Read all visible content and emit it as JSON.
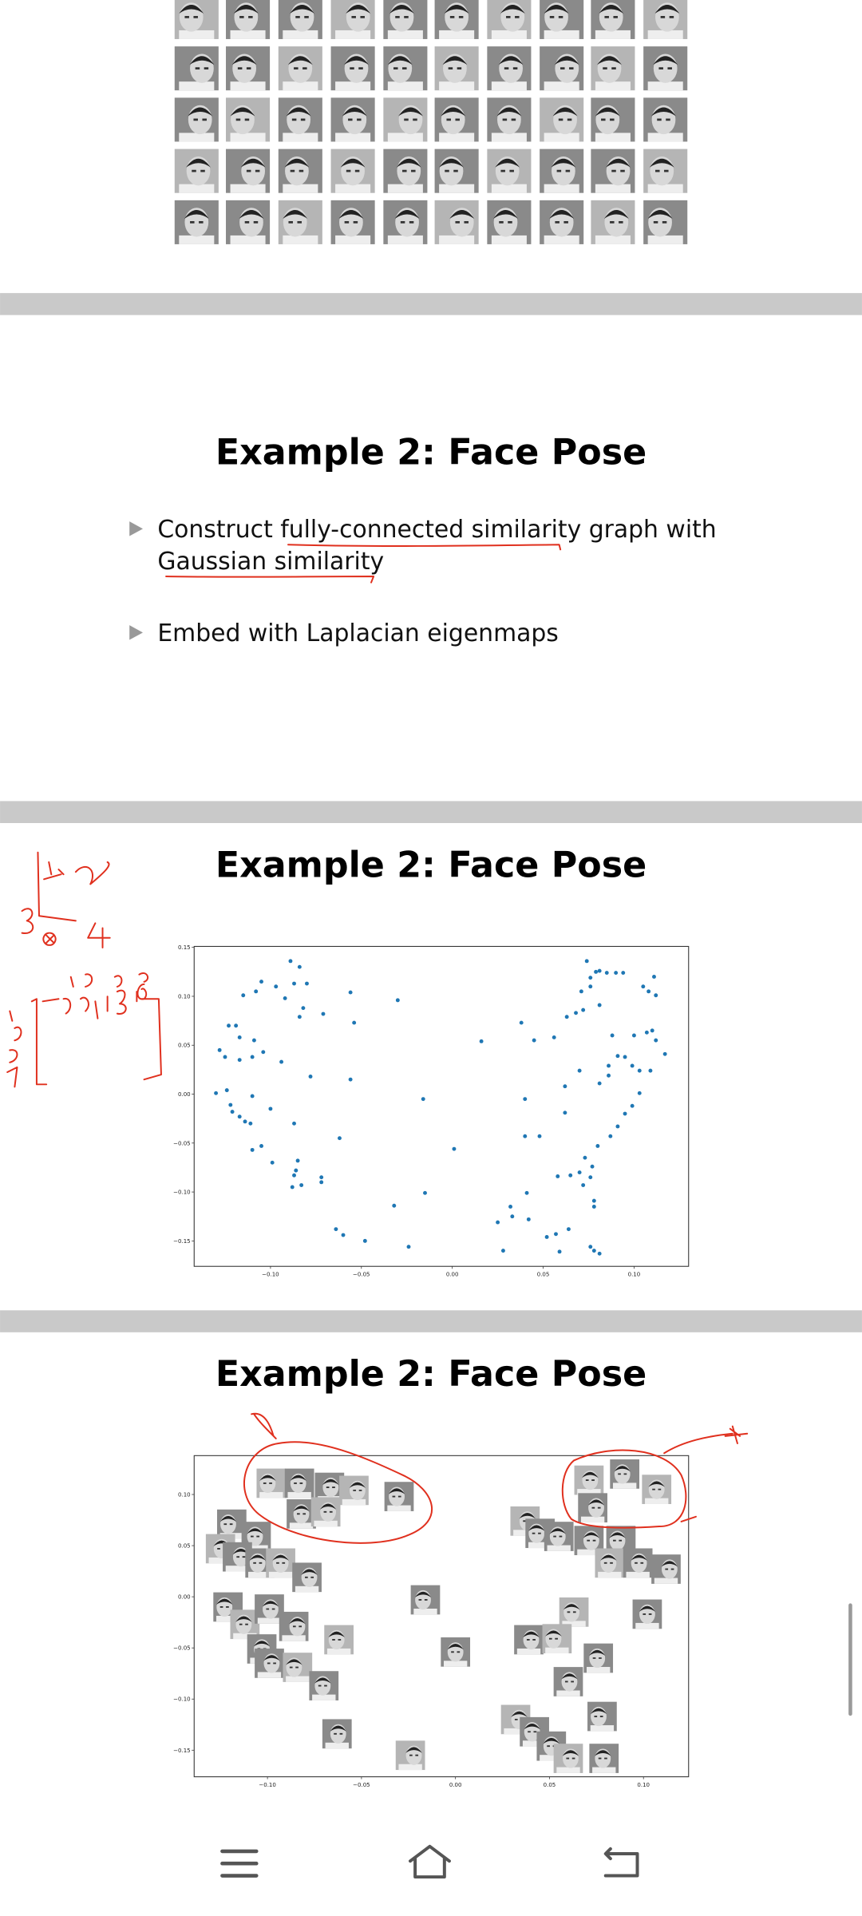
{
  "slides": [
    {
      "title": "Example 2: Face Pose",
      "bullets": [
        [
          "Construct fully-connected similarity graph with",
          "Gaussian similarity"
        ],
        [
          "Embed with Laplacian eigenmaps"
        ]
      ]
    },
    {
      "title": "Example 2: Face Pose"
    },
    {
      "title": "Example 2: Face Pose"
    }
  ],
  "chart_data": [
    {
      "type": "scatter",
      "color": "#1f77b4",
      "xlim": [
        -0.142,
        0.13
      ],
      "ylim": [
        -0.176,
        0.151
      ],
      "xticks": [
        {
          "value": -0.1,
          "label": "−0.10"
        },
        {
          "value": -0.05,
          "label": "−0.05"
        },
        {
          "value": 0,
          "label": "0.00"
        },
        {
          "value": 0.05,
          "label": "0.05"
        },
        {
          "value": 0.1,
          "label": "0.10"
        }
      ],
      "yticks": [
        {
          "value": -0.15,
          "label": "−0.15"
        },
        {
          "value": -0.1,
          "label": "−0.10"
        },
        {
          "value": -0.05,
          "label": "−0.05"
        },
        {
          "value": 0,
          "label": "0.00"
        },
        {
          "value": 0.05,
          "label": "0.05"
        },
        {
          "value": 0.1,
          "label": "0.10"
        },
        {
          "value": 0.15,
          "label": "0.15"
        }
      ],
      "x": [
        -0.089,
        -0.084,
        -0.105,
        -0.097,
        -0.08,
        -0.087,
        -0.115,
        -0.092,
        -0.108,
        -0.082,
        -0.071,
        -0.056,
        -0.084,
        -0.054,
        -0.123,
        -0.119,
        -0.117,
        -0.128,
        -0.109,
        -0.104,
        -0.11,
        -0.125,
        -0.094,
        -0.117,
        -0.078,
        -0.056,
        -0.13,
        -0.124,
        -0.11,
        -0.122,
        -0.121,
        -0.117,
        -0.114,
        -0.111,
        -0.1,
        -0.087,
        -0.062,
        -0.11,
        -0.105,
        -0.099,
        -0.085,
        -0.086,
        -0.087,
        -0.072,
        -0.072,
        -0.083,
        -0.088,
        -0.064,
        -0.06,
        -0.048,
        -0.024,
        -0.032,
        -0.015,
        -0.016,
        -0.03,
        0.001,
        0.016,
        0.074,
        0.079,
        0.076,
        0.081,
        0.085,
        0.09,
        0.094,
        0.076,
        0.071,
        0.081,
        0.072,
        0.068,
        0.063,
        0.105,
        0.111,
        0.108,
        0.112,
        0.038,
        0.045,
        0.056,
        0.088,
        0.1,
        0.107,
        0.112,
        0.11,
        0.117,
        0.091,
        0.095,
        0.099,
        0.103,
        0.109,
        0.086,
        0.086,
        0.07,
        0.081,
        0.062,
        0.04,
        0.103,
        0.099,
        0.095,
        0.091,
        0.062,
        0.087,
        0.08,
        0.04,
        0.048,
        0.058,
        0.065,
        0.07,
        0.073,
        0.077,
        0.076,
        0.072,
        0.041,
        0.032,
        0.042,
        0.033,
        0.025,
        0.052,
        0.057,
        0.064,
        0.059,
        0.028,
        0.076,
        0.078,
        0.081,
        0.078,
        0.078
      ],
      "values": [
        0.136,
        0.13,
        0.115,
        0.11,
        0.113,
        0.113,
        0.101,
        0.098,
        0.105,
        0.088,
        0.082,
        0.104,
        0.079,
        0.073,
        0.07,
        0.07,
        0.058,
        0.045,
        0.055,
        0.043,
        0.038,
        0.038,
        0.033,
        0.035,
        0.018,
        0.015,
        0.001,
        0.004,
        -0.002,
        -0.011,
        -0.018,
        -0.023,
        -0.028,
        -0.03,
        -0.015,
        -0.03,
        -0.045,
        -0.057,
        -0.053,
        -0.07,
        -0.068,
        -0.078,
        -0.083,
        -0.085,
        -0.09,
        -0.093,
        -0.095,
        -0.138,
        -0.144,
        -0.15,
        -0.156,
        -0.114,
        -0.101,
        -0.005,
        0.096,
        -0.056,
        0.054,
        0.136,
        0.125,
        0.119,
        0.126,
        0.124,
        0.124,
        0.124,
        0.11,
        0.105,
        0.091,
        0.086,
        0.083,
        0.079,
        0.11,
        0.12,
        0.105,
        0.101,
        0.073,
        0.055,
        0.058,
        0.06,
        0.06,
        0.063,
        0.055,
        0.065,
        0.041,
        0.039,
        0.038,
        0.029,
        0.024,
        0.024,
        0.029,
        0.019,
        0.024,
        0.011,
        0.008,
        -0.005,
        0.001,
        -0.012,
        -0.02,
        -0.033,
        -0.019,
        -0.043,
        -0.053,
        -0.043,
        -0.043,
        -0.084,
        -0.083,
        -0.08,
        -0.065,
        -0.074,
        -0.085,
        -0.093,
        -0.101,
        -0.115,
        -0.128,
        -0.125,
        -0.131,
        -0.146,
        -0.143,
        -0.138,
        -0.161,
        -0.16,
        -0.156,
        -0.16,
        -0.163,
        -0.109,
        -0.115
      ]
    },
    {
      "type": "scatter",
      "marker": "face",
      "xlim": [
        -0.139,
        0.124
      ],
      "ylim": [
        -0.176,
        0.138
      ],
      "xticks": [
        {
          "value": -0.1,
          "label": "−0.10"
        },
        {
          "value": -0.05,
          "label": "−0.05"
        },
        {
          "value": 0,
          "label": "0.00"
        },
        {
          "value": 0.05,
          "label": "0.05"
        },
        {
          "value": 0.1,
          "label": "0.10"
        }
      ],
      "yticks": [
        {
          "value": -0.15,
          "label": "−0.15"
        },
        {
          "value": -0.1,
          "label": "−0.10"
        },
        {
          "value": -0.05,
          "label": "−0.05"
        },
        {
          "value": 0,
          "label": "0.00"
        },
        {
          "value": 0.05,
          "label": "0.05"
        },
        {
          "value": 0.1,
          "label": "0.10"
        }
      ],
      "x": [
        -0.098,
        -0.083,
        -0.067,
        -0.054,
        -0.03,
        -0.082,
        -0.069,
        -0.119,
        -0.106,
        -0.125,
        -0.116,
        -0.104,
        -0.093,
        -0.079,
        -0.121,
        -0.112,
        -0.099,
        -0.086,
        -0.062,
        -0.103,
        -0.099,
        -0.084,
        -0.07,
        -0.063,
        -0.024,
        -0.016,
        0.0,
        0.037,
        0.045,
        0.055,
        0.071,
        0.073,
        0.09,
        0.107,
        0.071,
        0.088,
        0.082,
        0.097,
        0.112,
        0.063,
        0.102,
        0.039,
        0.054,
        0.076,
        0.06,
        0.032,
        0.042,
        0.051,
        0.06,
        0.078,
        0.079
      ],
      "values": [
        0.111,
        0.111,
        0.107,
        0.104,
        0.098,
        0.081,
        0.083,
        0.071,
        0.059,
        0.047,
        0.039,
        0.033,
        0.033,
        0.019,
        -0.01,
        -0.027,
        -0.012,
        -0.029,
        -0.042,
        -0.051,
        -0.065,
        -0.069,
        -0.087,
        -0.134,
        -0.155,
        -0.003,
        -0.054,
        0.074,
        0.062,
        0.059,
        0.114,
        0.087,
        0.12,
        0.105,
        0.055,
        0.055,
        0.033,
        0.033,
        0.027,
        -0.015,
        -0.017,
        -0.042,
        -0.041,
        -0.06,
        -0.083,
        -0.12,
        -0.132,
        -0.146,
        -0.158,
        -0.117,
        -0.158
      ]
    }
  ]
}
